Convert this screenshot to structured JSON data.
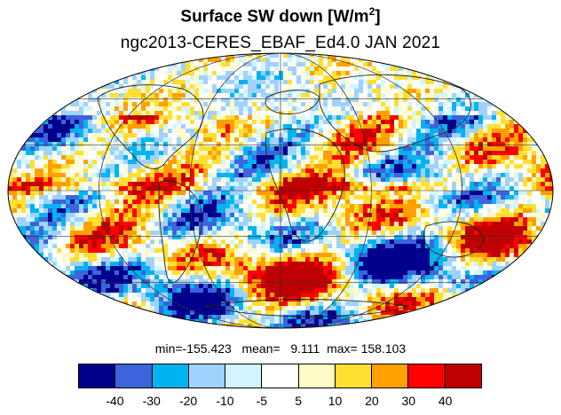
{
  "title_main": "Surface SW down [W/m",
  "title_sup": "2",
  "title_end": "]",
  "subtitle": "ngc2013-CERES_EBAF_Ed4.0  JAN 2021",
  "stats": "min=-155.423   mean=   9.111  max= 158.103",
  "chart_data": {
    "type": "heatmap",
    "projection": "mollweide",
    "colorbar": {
      "colors": [
        "#00008c",
        "#3c64dc",
        "#00b4f0",
        "#a0d2ff",
        "#d2f5ff",
        "#ffffff",
        "#fffac8",
        "#ffe032",
        "#ffa000",
        "#ff0000",
        "#be0000"
      ],
      "tick_labels": [
        "-40",
        "-30",
        "-20",
        "-10",
        "-5",
        "5",
        "10",
        "20",
        "30",
        "40"
      ]
    }
  }
}
